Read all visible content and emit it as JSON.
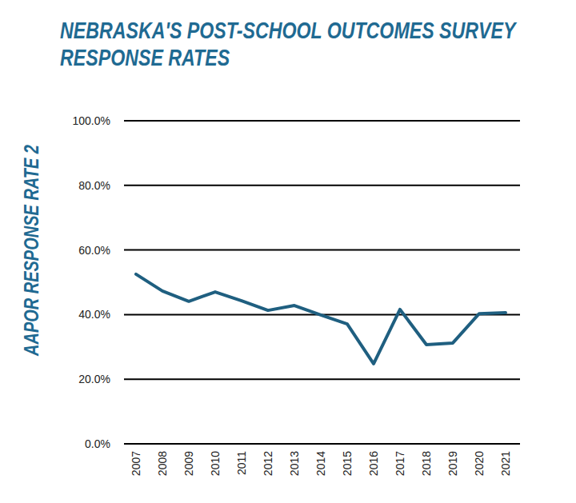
{
  "chart_data": {
    "type": "line",
    "title": "NEBRASKA'S POST-SCHOOL OUTCOMES SURVEY RESPONSE RATES",
    "y_label": "AAPOR RESPONSE RATE 2",
    "categories": [
      "2007",
      "2008",
      "2009",
      "2010",
      "2011",
      "2012",
      "2013",
      "2014",
      "2015",
      "2016",
      "2017",
      "2018",
      "2019",
      "2020",
      "2021"
    ],
    "values": [
      52.5,
      47.3,
      44.1,
      47.0,
      44.3,
      41.3,
      42.8,
      39.9,
      37.1,
      24.8,
      41.6,
      30.7,
      31.2,
      40.3,
      40.6
    ],
    "color": "#1f5f80",
    "ylim": [
      0,
      100
    ],
    "yticks": [
      {
        "value": 0,
        "label": "0.0%"
      },
      {
        "value": 20,
        "label": "20.0%"
      },
      {
        "value": 40,
        "label": "40.0%"
      },
      {
        "value": 60,
        "label": "60.0%"
      },
      {
        "value": 80,
        "label": "80.0%"
      },
      {
        "value": 100,
        "label": "100.0%"
      }
    ],
    "grid": true
  }
}
